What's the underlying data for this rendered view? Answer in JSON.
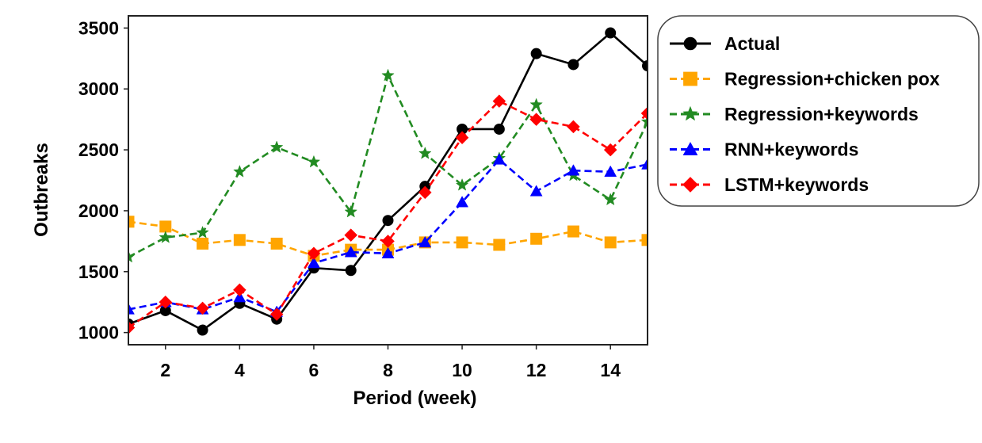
{
  "chart_data": {
    "type": "line",
    "title": "",
    "xlabel": "Period  (week)",
    "ylabel": "Outbreaks",
    "xlim": [
      1,
      15
    ],
    "ylim": [
      900,
      3600
    ],
    "xticks": [
      2,
      4,
      6,
      8,
      10,
      12,
      14
    ],
    "yticks": [
      1000,
      1500,
      2000,
      2500,
      3000,
      3500
    ],
    "grid": false,
    "legend_position": "outside-right-top",
    "x": [
      1,
      2,
      3,
      4,
      5,
      6,
      7,
      8,
      9,
      10,
      11,
      12,
      13,
      14,
      15
    ],
    "series": [
      {
        "name": "Actual",
        "color": "#000000",
        "marker": "circle",
        "linestyle": "solid",
        "values": [
          1070,
          1180,
          1020,
          1240,
          1110,
          1530,
          1510,
          1920,
          2200,
          2670,
          2670,
          3290,
          3200,
          3460,
          3190
        ]
      },
      {
        "name": "Regression+chicken pox",
        "color": "#ffa500",
        "marker": "square",
        "linestyle": "dashed",
        "values": [
          1910,
          1870,
          1730,
          1760,
          1730,
          1630,
          1680,
          1680,
          1740,
          1740,
          1720,
          1770,
          1830,
          1740,
          1760
        ]
      },
      {
        "name": "Regression+keywords",
        "color": "#228b22",
        "marker": "star",
        "linestyle": "dashed",
        "values": [
          1620,
          1780,
          1820,
          2320,
          2520,
          2400,
          1990,
          3110,
          2470,
          2210,
          2430,
          2870,
          2290,
          2090,
          2730
        ]
      },
      {
        "name": "RNN+keywords",
        "color": "#0000ff",
        "marker": "triangle",
        "linestyle": "dashed",
        "values": [
          1190,
          1250,
          1190,
          1290,
          1170,
          1570,
          1660,
          1650,
          1740,
          2070,
          2420,
          2160,
          2330,
          2320,
          2380
        ]
      },
      {
        "name": "LSTM+keywords",
        "color": "#ff0000",
        "marker": "diamond",
        "linestyle": "dashed",
        "values": [
          1040,
          1250,
          1200,
          1350,
          1150,
          1650,
          1800,
          1750,
          2150,
          2600,
          2900,
          2750,
          2690,
          2500,
          2800
        ]
      }
    ]
  }
}
